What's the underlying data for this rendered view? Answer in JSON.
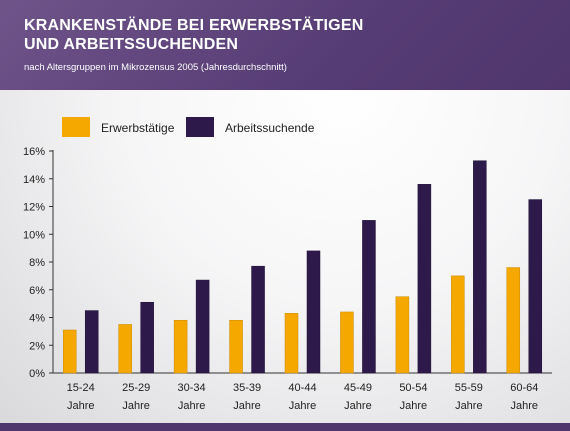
{
  "header": {
    "title": "KRANKENSTÄNDE BEI ERWERBSTÄTIGEN\nUND ARBEITSSUCHENDEN",
    "subtitle": "nach Altersgruppen im Mikrozensus 2005 (Jahresdurchschnitt)"
  },
  "colors": {
    "erwerbstaetige": "#f5a800",
    "arbeitssuchende": "#2e1a4a",
    "header_bg": "#5a3f78"
  },
  "chart_data": {
    "type": "bar",
    "title": "KRANKENSTÄNDE BEI ERWERBSTÄTIGEN UND ARBEITSSUCHENDEN",
    "subtitle": "nach Altersgruppen im Mikrozensus 2005 (Jahresdurchschnitt)",
    "categories": [
      "15-24",
      "25-29",
      "30-34",
      "35-39",
      "40-44",
      "45-49",
      "50-54",
      "55-59",
      "60-64"
    ],
    "category_suffix": "Jahre",
    "series": [
      {
        "name": "Erwerbstätige",
        "values": [
          3.1,
          3.5,
          3.8,
          3.8,
          4.3,
          4.4,
          5.5,
          7.0,
          7.6
        ]
      },
      {
        "name": "Arbeitssuchende",
        "values": [
          4.5,
          5.1,
          6.7,
          7.7,
          8.8,
          11.0,
          13.6,
          15.3,
          12.5
        ]
      }
    ],
    "y_ticks": [
      "0%",
      "2%",
      "4%",
      "6%",
      "8%",
      "10%",
      "12%",
      "14%",
      "16%"
    ],
    "ylim": [
      0,
      16
    ],
    "xlabel": "",
    "ylabel": "",
    "grid": false,
    "legend": "top-left"
  }
}
